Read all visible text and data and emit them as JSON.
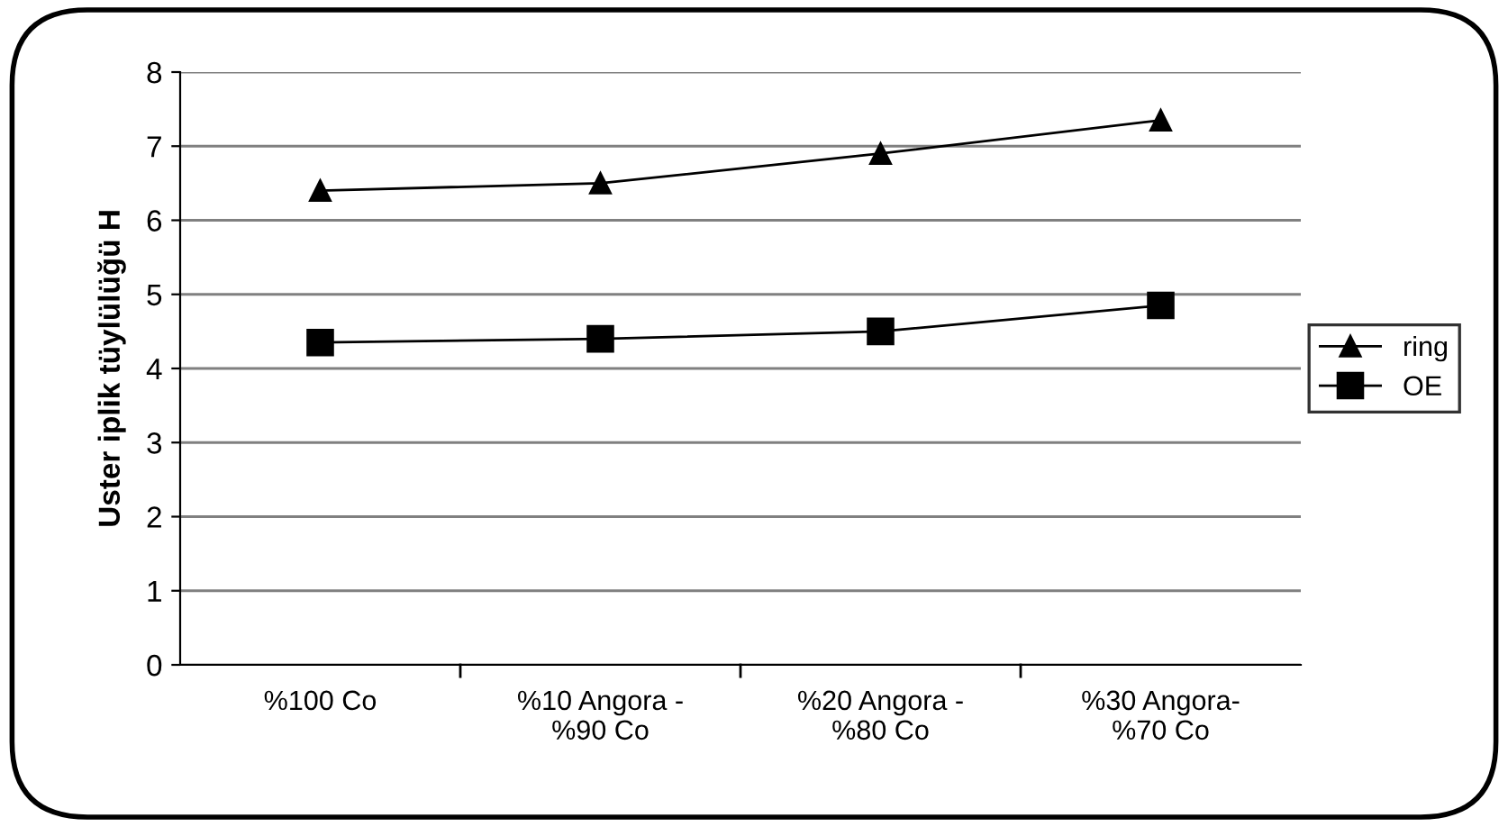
{
  "chart_data": {
    "type": "line",
    "ylabel": "Uster iplik tüylülüğü H",
    "categories": [
      "%100 Co",
      "%10 Angora -\n%90 Co",
      "%20 Angora -\n%80 Co",
      "%30 Angora-\n%70 Co"
    ],
    "series": [
      {
        "name": "ring",
        "color": "#000000",
        "marker": "triangle",
        "values": [
          6.4,
          6.5,
          6.9,
          7.35
        ]
      },
      {
        "name": "OE",
        "color": "#000000",
        "marker": "square",
        "values": [
          4.35,
          4.4,
          4.5,
          4.85
        ]
      }
    ],
    "ylim": [
      0,
      8
    ],
    "yticks": [
      0,
      1,
      2,
      3,
      4,
      5,
      6,
      7,
      8
    ],
    "grid": "y",
    "legend": "right",
    "line_style": "solid"
  }
}
